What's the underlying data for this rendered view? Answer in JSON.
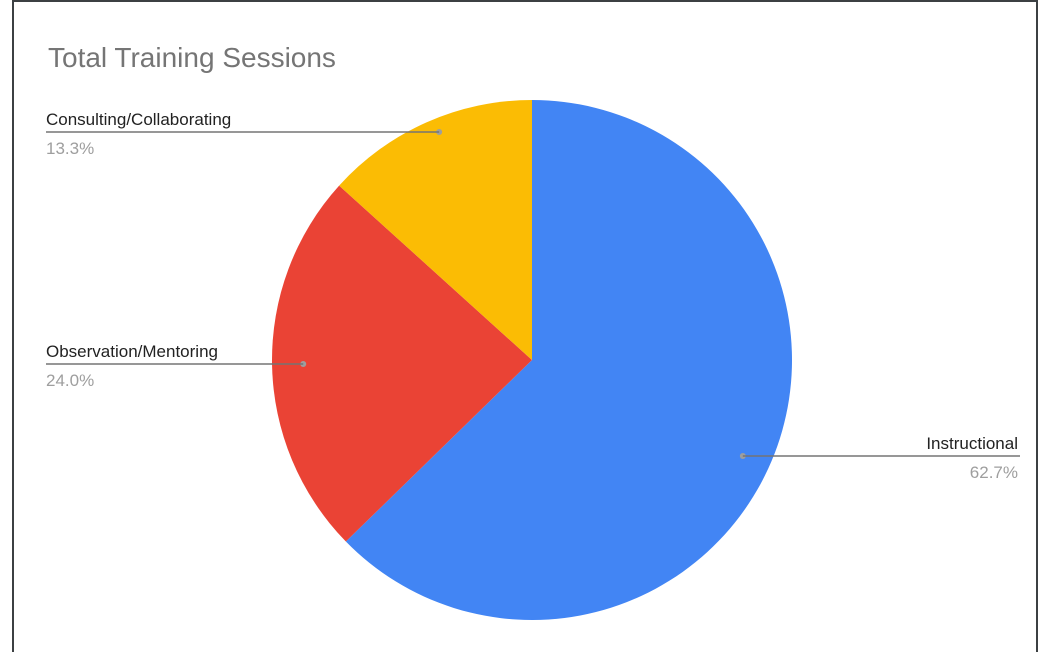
{
  "chart_data": {
    "type": "pie",
    "title": "Total Training Sessions",
    "slices": [
      {
        "label": "Instructional",
        "value": 62.7,
        "value_label": "62.7%",
        "color": "#4285f4"
      },
      {
        "label": "Observation/Mentoring",
        "value": 24.0,
        "value_label": "24.0%",
        "color": "#ea4335"
      },
      {
        "label": "Consulting/Collaborating",
        "value": 13.3,
        "value_label": "13.3%",
        "color": "#fbbc04"
      }
    ],
    "start": "12 o'clock",
    "direction": "clockwise",
    "legend": "none",
    "label_style": "leader lines"
  }
}
